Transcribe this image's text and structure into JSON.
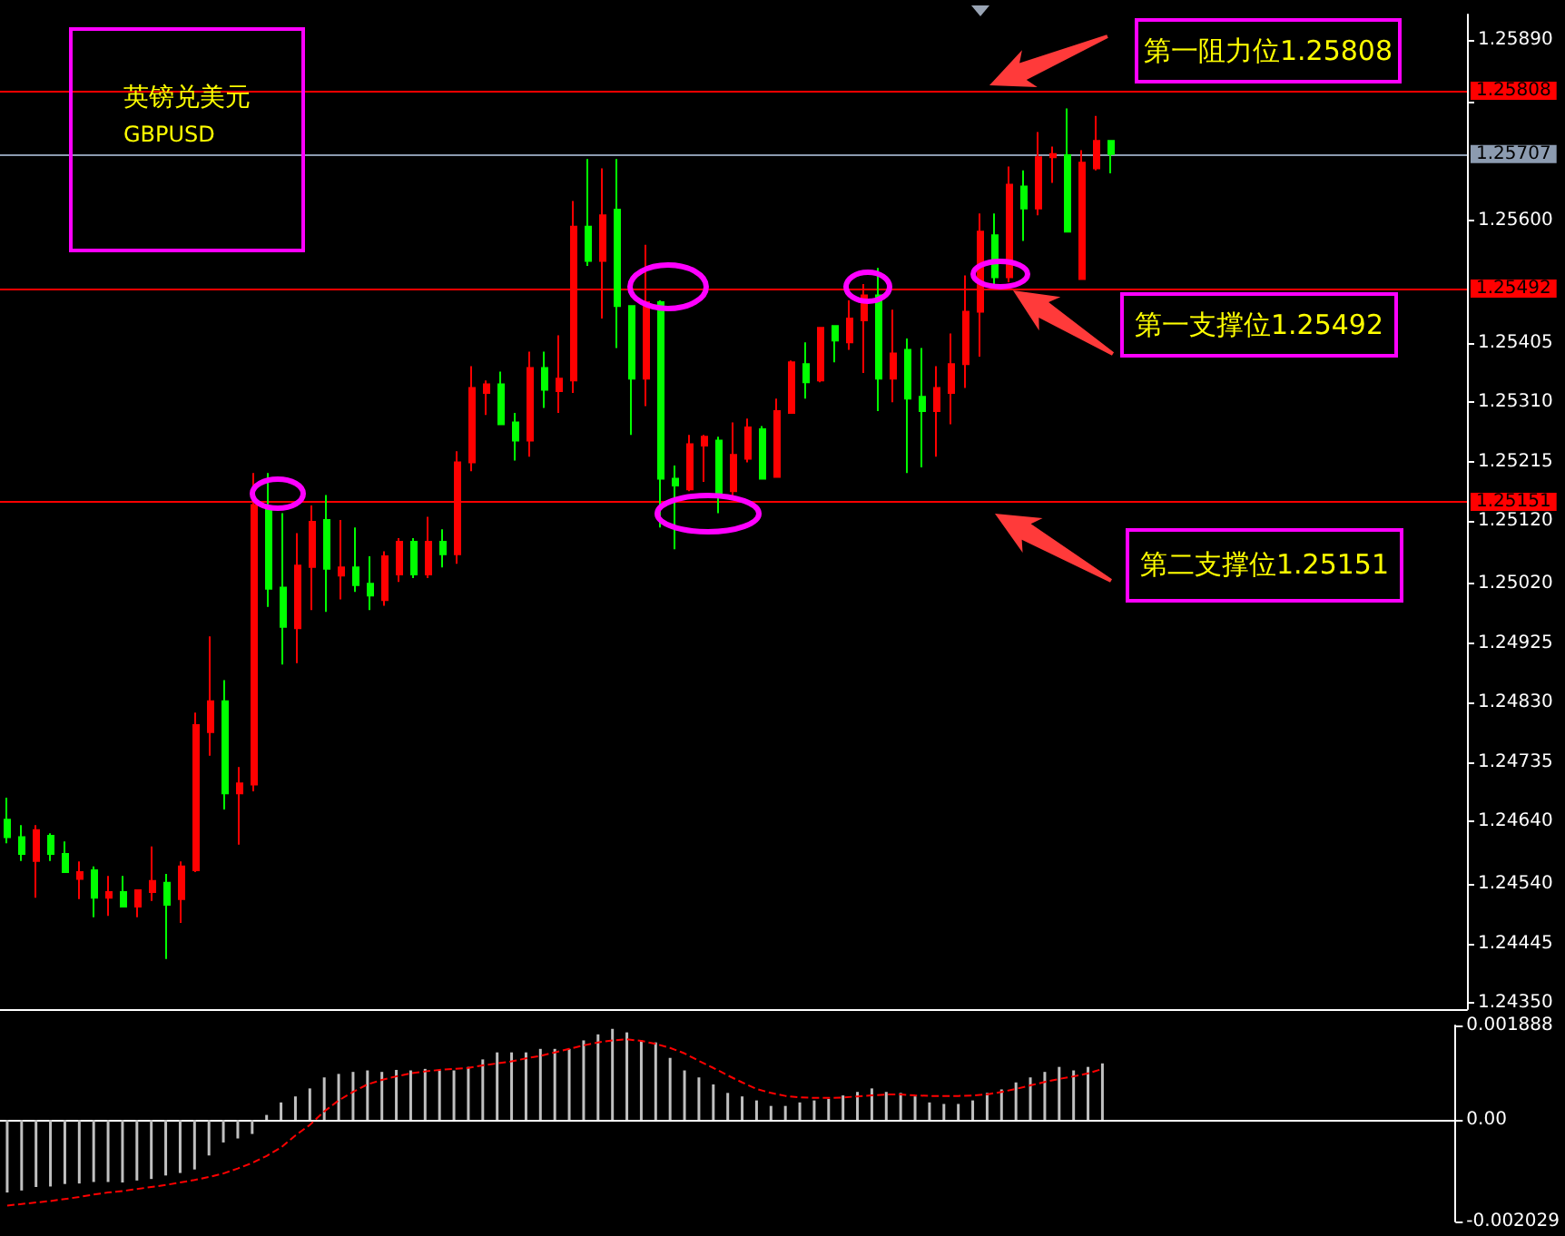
{
  "chart_data": [
    {
      "type": "candlestick",
      "title": "英镑兑美元",
      "subtitle": "GBPUSD",
      "categories": [
        null,
        null,
        null,
        null,
        null,
        null,
        null,
        null,
        null,
        null,
        null,
        null,
        null,
        null,
        null,
        null,
        null,
        null,
        null,
        null,
        null,
        null,
        null,
        null,
        null,
        null,
        null,
        null,
        null,
        null,
        null,
        null,
        null,
        null,
        null,
        null,
        null,
        null,
        null,
        null,
        null,
        null,
        null,
        null,
        null,
        null,
        null,
        null,
        null,
        null,
        null,
        null,
        null,
        null,
        null,
        null,
        null,
        null,
        null,
        null,
        null,
        null,
        null,
        null,
        null,
        null,
        null,
        null,
        null,
        null,
        null,
        null,
        null,
        null,
        null,
        null,
        null,
        null,
        null,
        null,
        null,
        null,
        null,
        null,
        null,
        null,
        null,
        null,
        null,
        null,
        null,
        null,
        null,
        null,
        null,
        null,
        null,
        null,
        null,
        null,
        null
      ],
      "ohlc": [
        [
          1.24643,
          1.24678,
          1.24605,
          1.24615
        ],
        [
          1.24615,
          1.24634,
          1.24577,
          1.24588
        ],
        [
          1.24577,
          1.24634,
          1.24518,
          1.24626
        ],
        [
          1.24617,
          1.24621,
          1.24577,
          1.24588
        ],
        [
          1.24588,
          1.24608,
          1.24559,
          1.24559
        ],
        [
          1.24548,
          1.24576,
          1.24516,
          1.24559
        ],
        [
          1.24562,
          1.24568,
          1.24487,
          1.24518
        ],
        [
          1.24518,
          1.24553,
          1.24489,
          1.24527
        ],
        [
          1.24527,
          1.24553,
          1.24504,
          1.24504
        ],
        [
          1.24504,
          1.2453,
          1.24487,
          1.2453
        ],
        [
          1.24527,
          1.246,
          1.24513,
          1.24545
        ],
        [
          1.24542,
          1.24556,
          1.2442,
          1.24507
        ],
        [
          1.24516,
          1.24576,
          1.24478,
          1.24568
        ],
        [
          1.24562,
          1.24814,
          1.24559,
          1.24794
        ],
        [
          1.24783,
          1.24936,
          1.24745,
          1.24832
        ],
        [
          1.24832,
          1.24866,
          1.24659,
          1.24685
        ],
        [
          1.24685,
          1.24727,
          1.24603,
          1.24701
        ],
        [
          1.24699,
          1.25197,
          1.24688,
          1.25146
        ],
        [
          1.25139,
          1.25197,
          1.24983,
          1.25012
        ],
        [
          1.25014,
          1.25133,
          1.24891,
          1.24951
        ],
        [
          1.24949,
          1.25101,
          1.24893,
          1.25049
        ],
        [
          1.25047,
          1.25145,
          1.24978,
          1.25119
        ],
        [
          1.25122,
          1.25162,
          1.24975,
          1.25044
        ],
        [
          1.25033,
          1.25122,
          1.24995,
          1.25046
        ],
        [
          1.25046,
          1.2511,
          1.25007,
          1.25018
        ],
        [
          1.2502,
          1.25064,
          1.24978,
          1.25001
        ],
        [
          1.24994,
          1.25072,
          1.24985,
          1.25064
        ],
        [
          1.25035,
          1.25093,
          1.25023,
          1.25087
        ],
        [
          1.25087,
          1.25093,
          1.25029,
          1.25035
        ],
        [
          1.25035,
          1.25127,
          1.25029,
          1.25087
        ],
        [
          1.25087,
          1.25107,
          1.25046,
          1.25067
        ],
        [
          1.25067,
          1.25232,
          1.25052,
          1.25214
        ],
        [
          1.25214,
          1.25368,
          1.252,
          1.25333
        ],
        [
          1.25325,
          1.25345,
          1.2529,
          1.25339
        ],
        [
          1.25339,
          1.25359,
          1.25275,
          1.25275
        ],
        [
          1.25278,
          1.25293,
          1.25217,
          1.25249
        ],
        [
          1.25249,
          1.25391,
          1.25223,
          1.25365
        ],
        [
          1.25365,
          1.25391,
          1.25301,
          1.2533
        ],
        [
          1.25328,
          1.25417,
          1.25293,
          1.25348
        ],
        [
          1.25345,
          1.25632,
          1.25325,
          1.25591
        ],
        [
          1.25591,
          1.25699,
          1.25528,
          1.25536
        ],
        [
          1.25536,
          1.25684,
          1.25444,
          1.25609
        ],
        [
          1.25618,
          1.25699,
          1.25397,
          1.25464
        ],
        [
          1.25464,
          1.25464,
          1.25258,
          1.25348
        ],
        [
          1.25348,
          1.25562,
          1.25304,
          1.2547
        ],
        [
          1.2547,
          1.25473,
          1.2511,
          1.25188
        ],
        [
          1.25188,
          1.25209,
          1.25075,
          1.25177
        ],
        [
          1.25171,
          1.25258,
          1.25168,
          1.25243
        ],
        [
          1.25241,
          1.25258,
          1.25183,
          1.25255
        ],
        [
          1.25249,
          1.25255,
          1.25133,
          1.25165
        ],
        [
          1.25168,
          1.25278,
          1.25156,
          1.25226
        ],
        [
          1.2522,
          1.25284,
          1.25214,
          1.2527
        ],
        [
          1.25267,
          1.25272,
          1.25188,
          1.25188
        ],
        [
          1.25191,
          1.25316,
          1.25191,
          1.25296
        ],
        [
          1.25293,
          1.25377,
          1.25293,
          1.25374
        ],
        [
          1.25371,
          1.25406,
          1.25316,
          1.25342
        ],
        [
          1.25345,
          1.25429,
          1.25342,
          1.25429
        ],
        [
          1.25432,
          1.25432,
          1.25374,
          1.25409
        ],
        [
          1.25406,
          1.25473,
          1.25394,
          1.25444
        ],
        [
          1.25441,
          1.25499,
          1.25357,
          1.25481
        ],
        [
          1.25481,
          1.25525,
          1.25296,
          1.25348
        ],
        [
          1.25348,
          1.25458,
          1.2531,
          1.25388
        ],
        [
          1.25394,
          1.25412,
          1.25197,
          1.25316
        ],
        [
          1.25319,
          1.25397,
          1.25206,
          1.25296
        ],
        [
          1.25296,
          1.25368,
          1.25223,
          1.25333
        ],
        [
          1.25325,
          1.2542,
          1.25275,
          1.25371
        ],
        [
          1.25371,
          1.25513,
          1.25333,
          1.25455
        ],
        [
          1.25455,
          1.25612,
          1.25383,
          1.25583
        ],
        [
          1.25577,
          1.25612,
          1.25496,
          1.2551
        ],
        [
          1.2551,
          1.25687,
          1.25502,
          1.25658
        ],
        [
          1.25655,
          1.25681,
          1.25568,
          1.2562
        ],
        [
          1.2562,
          1.25742,
          1.25609,
          1.25702
        ],
        [
          1.25702,
          1.25719,
          1.25661,
          1.25707
        ],
        [
          1.25705,
          1.2578,
          1.25583,
          1.25583
        ],
        [
          1.25507,
          1.25713,
          1.25507,
          1.25693
        ],
        [
          1.25684,
          1.25768,
          1.25681,
          1.25728
        ],
        [
          1.25728,
          1.25728,
          1.25676,
          1.25707
        ],
        null,
        null,
        null,
        null,
        null,
        null,
        null,
        null,
        null,
        null,
        null,
        null,
        null,
        null,
        null,
        null,
        null,
        null,
        null,
        null,
        null,
        null,
        null,
        null
      ],
      "ylim": [
        1.2434,
        1.2593
      ],
      "yticks": [
        {
          "value": 1.2589,
          "label": "1.25890"
        },
        {
          "value": 1.2579,
          "label": null
        },
        {
          "value": 1.256,
          "label": "1.25600"
        },
        {
          "value": 1.25405,
          "label": "1.25405"
        },
        {
          "value": 1.2531,
          "label": "1.25310"
        },
        {
          "value": 1.25215,
          "label": "1.25215"
        },
        {
          "value": 1.2512,
          "label": "1.25120"
        },
        {
          "value": 1.2502,
          "label": "1.25020"
        },
        {
          "value": 1.24925,
          "label": "1.24925"
        },
        {
          "value": 1.2483,
          "label": "1.24830"
        },
        {
          "value": 1.24735,
          "label": "1.24735"
        },
        {
          "value": 1.2464,
          "label": "1.24640"
        },
        {
          "value": 1.2454,
          "label": "1.24540"
        },
        {
          "value": 1.24445,
          "label": "1.24445"
        },
        {
          "value": 1.2435,
          "label": "1.24350"
        }
      ],
      "tick_labels": "y",
      "ref_lines": [
        {
          "axis": "y",
          "value": 1.25808,
          "label": "1.25808",
          "color": "#ff0000",
          "line_style": "solid"
        },
        {
          "axis": "y",
          "value": 1.25707,
          "label": "1.25707",
          "color": "#8c9bb0",
          "line_style": "solid"
        },
        {
          "axis": "y",
          "value": 1.25492,
          "label": "1.25492",
          "color": "#ff0000",
          "line_style": "solid"
        },
        {
          "axis": "y",
          "value": 1.25151,
          "label": "1.25151",
          "color": "#ff0000",
          "line_style": "solid"
        }
      ],
      "annotations": [
        "第一阻力位1.25808",
        "第一支撑位1.25492",
        "第二支撑位1.25151"
      ]
    },
    {
      "type": "bar",
      "categories": [
        null,
        null,
        null,
        null,
        null,
        null,
        null,
        null,
        null,
        null,
        null,
        null,
        null,
        null,
        null,
        null,
        null,
        null,
        null,
        null,
        null,
        null,
        null,
        null,
        null,
        null,
        null,
        null,
        null,
        null,
        null,
        null,
        null,
        null,
        null,
        null,
        null,
        null,
        null,
        null,
        null,
        null,
        null,
        null,
        null,
        null,
        null,
        null,
        null,
        null,
        null,
        null,
        null,
        null,
        null,
        null,
        null,
        null,
        null,
        null,
        null,
        null,
        null,
        null,
        null,
        null,
        null,
        null,
        null,
        null,
        null,
        null,
        null,
        null,
        null,
        null,
        null,
        null,
        null,
        null,
        null,
        null,
        null,
        null,
        null,
        null,
        null,
        null,
        null,
        null,
        null,
        null,
        null,
        null,
        null,
        null,
        null,
        null,
        null,
        null,
        null
      ],
      "series": [
        {
          "color": "#c0c0c0",
          "values": [
            -0.00145,
            -0.00141,
            -0.00134,
            -0.00133,
            -0.00128,
            -0.00127,
            -0.00124,
            -0.00124,
            -0.00125,
            -0.00121,
            -0.00118,
            -0.00111,
            -0.00106,
            -0.00099,
            -0.00071,
            -0.00045,
            -0.00037,
            -0.00028,
            0.0001,
            0.00035,
            0.00047,
            0.00063,
            0.00085,
            0.00092,
            0.00096,
            0.00099,
            0.00096,
            0.001,
            0.00099,
            0.00102,
            0.00099,
            0.00099,
            0.00106,
            0.00121,
            0.00135,
            0.00135,
            0.00135,
            0.00142,
            0.00142,
            0.00142,
            0.00159,
            0.00171,
            0.00182,
            0.00175,
            0.00159,
            0.00155,
            0.00124,
            0.00099,
            0.00085,
            0.00071,
            0.00054,
            0.00047,
            0.00039,
            0.00028,
            0.00028,
            0.00035,
            0.00039,
            0.00042,
            0.00049,
            0.00056,
            0.00063,
            0.00056,
            0.00054,
            0.00047,
            0.00035,
            0.00032,
            0.00032,
            0.00039,
            0.00054,
            0.00061,
            0.00075,
            0.00085,
            0.00096,
            0.00106,
            0.00099,
            0.00106,
            0.00113,
            null,
            null,
            null,
            null,
            null,
            null,
            null,
            null,
            null,
            null,
            null,
            null,
            null,
            null,
            null,
            null,
            null,
            null,
            null,
            null,
            null,
            null,
            null,
            null
          ]
        },
        {
          "type": "line",
          "color": "#ff0000",
          "line_style": "dashed",
          "values": [
            -0.00171,
            -0.00168,
            -0.00165,
            -0.00162,
            -0.00158,
            -0.00154,
            -0.00149,
            -0.00145,
            -0.00142,
            -0.00138,
            -0.00134,
            -0.0013,
            -0.00125,
            -0.0012,
            -0.00114,
            -0.00107,
            -0.00097,
            -0.00086,
            -0.00072,
            -0.00055,
            -0.00031,
            -0.0001,
            0.00017,
            0.00039,
            0.00056,
            0.00071,
            0.0008,
            0.00087,
            0.00093,
            0.00097,
            0.001,
            0.00102,
            0.00104,
            0.00109,
            0.00113,
            0.00117,
            0.00123,
            0.00128,
            0.00135,
            0.00142,
            0.00149,
            0.00155,
            0.00159,
            0.00161,
            0.00158,
            0.00152,
            0.00144,
            0.00133,
            0.00118,
            0.00104,
            0.00089,
            0.00075,
            0.00062,
            0.00054,
            0.00048,
            0.00045,
            0.00044,
            0.00044,
            0.00045,
            0.00047,
            0.00049,
            0.00051,
            0.00051,
            0.00049,
            0.00048,
            0.00048,
            0.00048,
            0.00049,
            0.00051,
            0.00056,
            0.00062,
            0.00069,
            0.00076,
            0.00082,
            0.00087,
            0.00093,
            0.00102,
            null,
            null,
            null,
            null,
            null,
            null,
            null,
            null,
            null,
            null,
            null,
            null,
            null,
            null,
            null,
            null,
            null,
            null,
            null,
            null,
            null,
            null,
            null,
            null
          ]
        }
      ],
      "ylim": [
        -0.002029,
        0.001888
      ],
      "yticks": [
        0.001888,
        {
          "value": 0,
          "label": "0.00"
        },
        -0.002029
      ],
      "tick_labels": "y"
    }
  ]
}
